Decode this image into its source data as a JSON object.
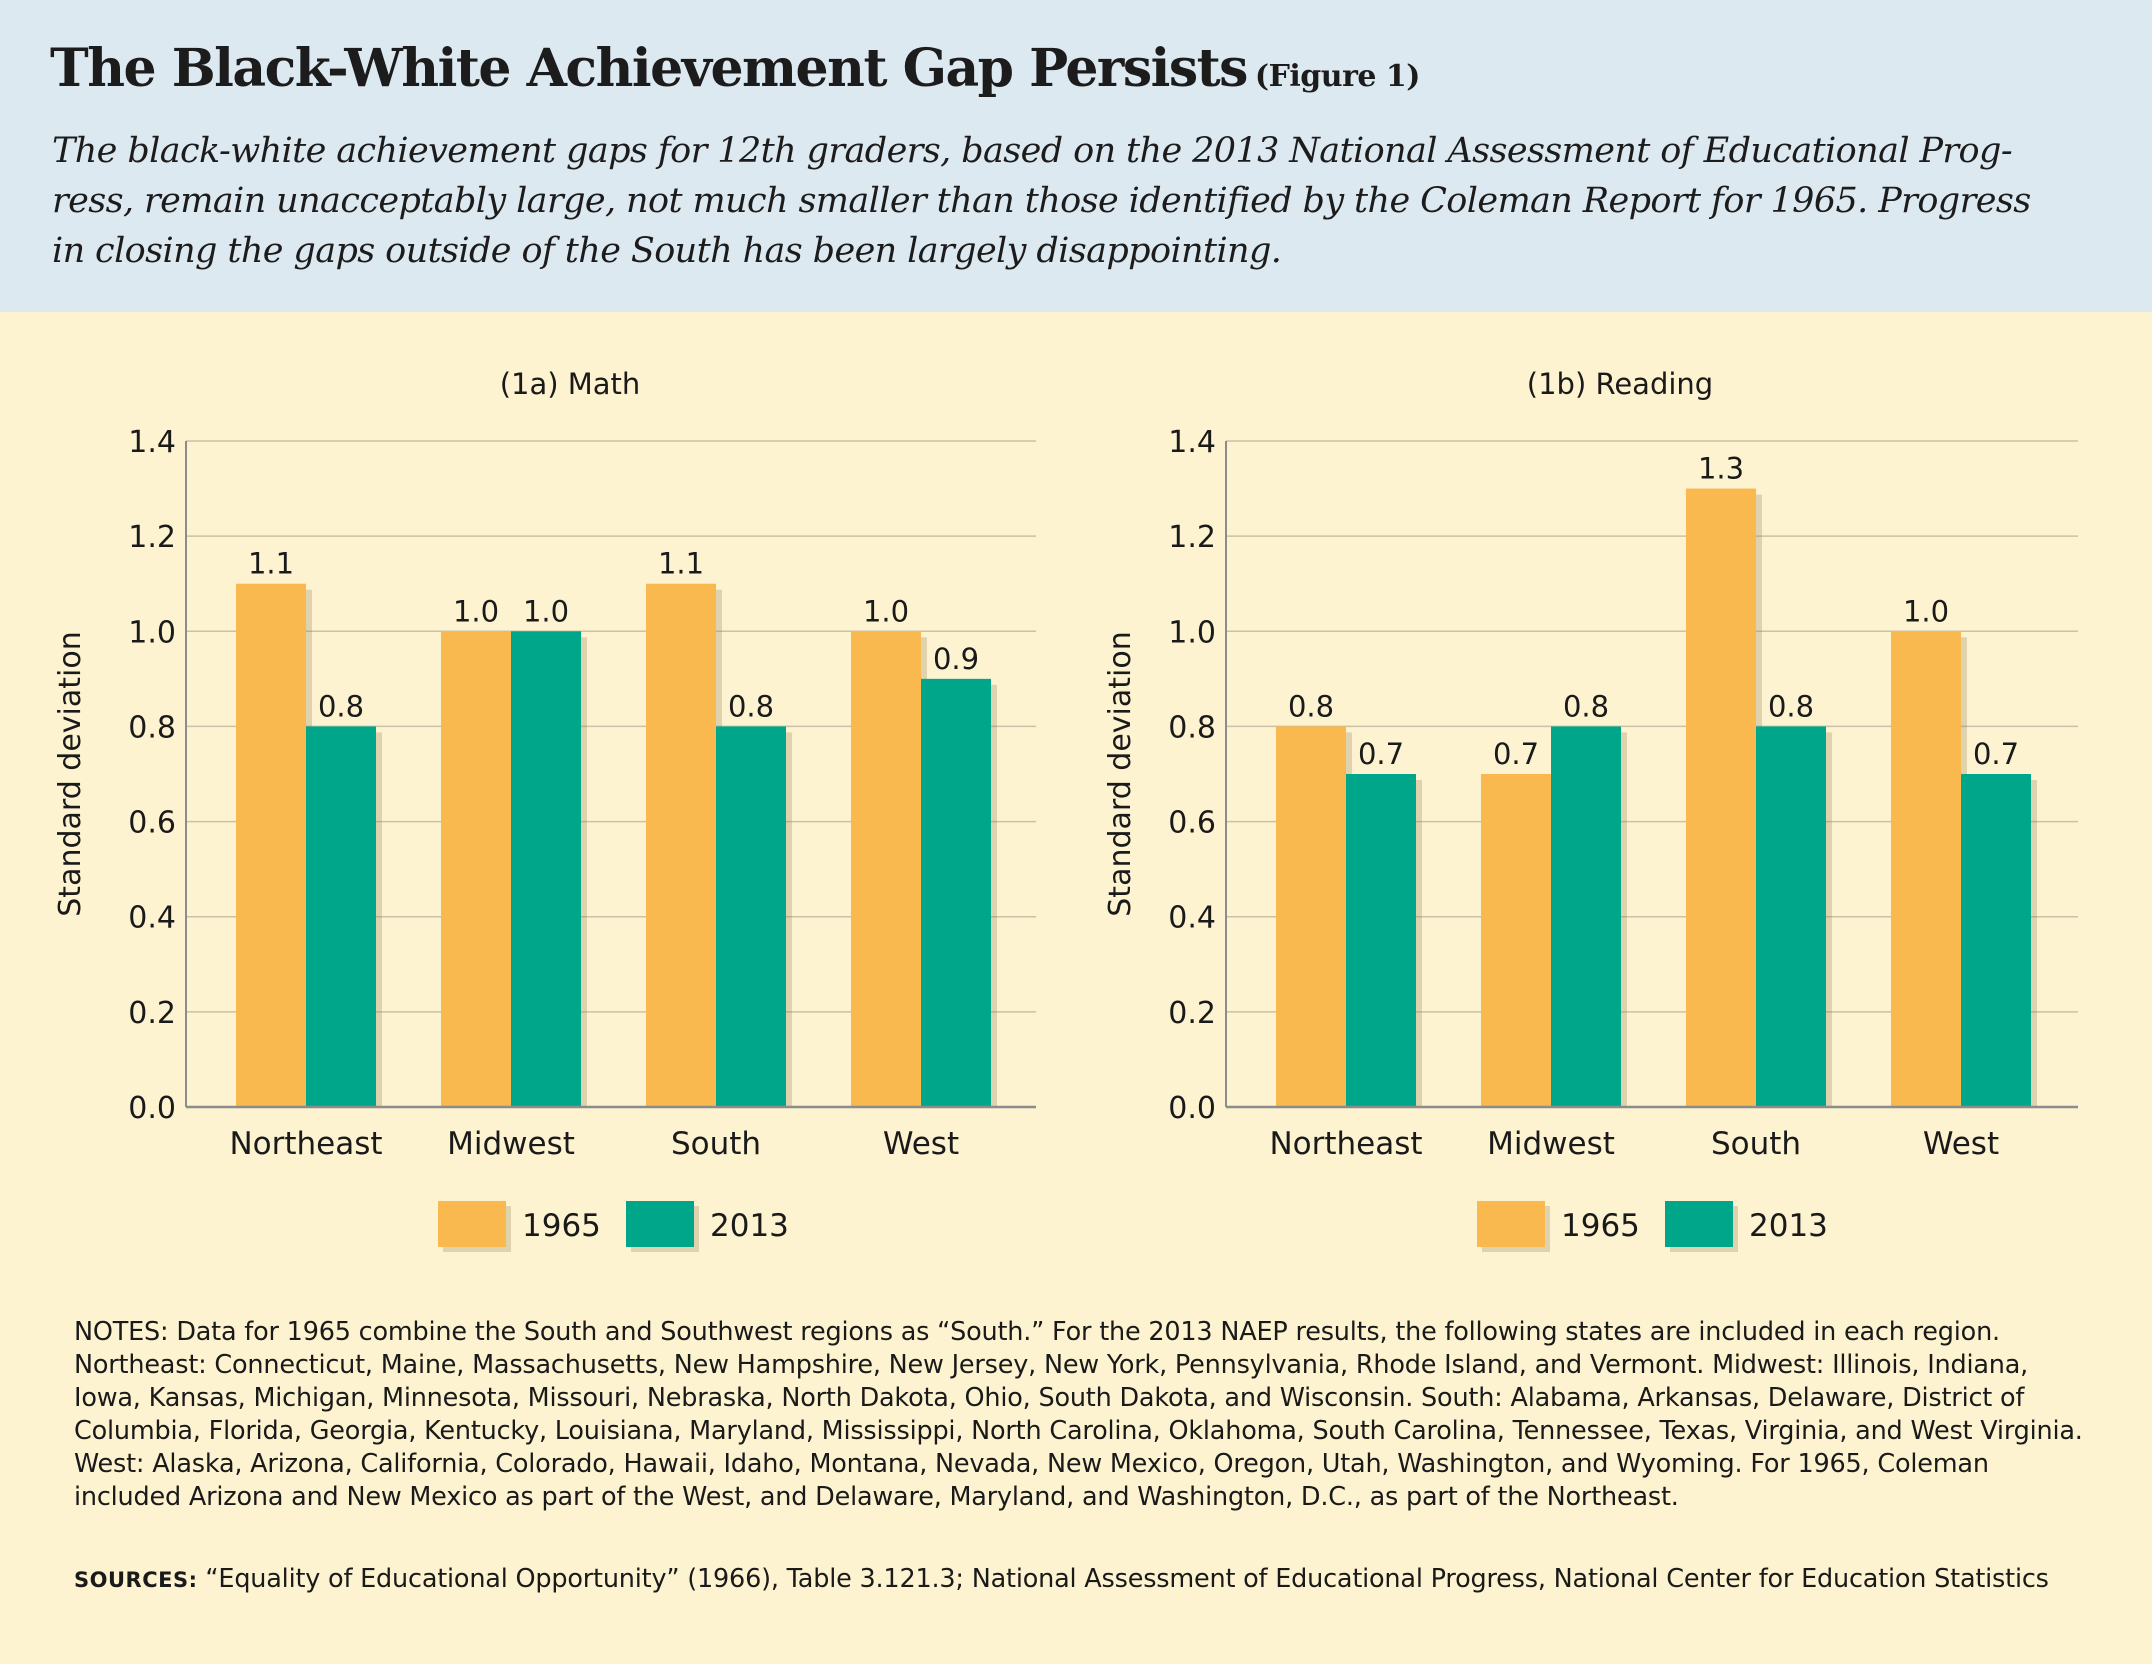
{
  "header": {
    "title": "The Black-White Achievement Gap Persists",
    "figure_tag": "(Figure 1)",
    "subtitle": "The black-white achievement gaps for 12th graders, based on the 2013 National Assessment of Educational Prog-\nress, remain unacceptably large, not much smaller than those identified by the Coleman Report for 1965. Progress\nin closing the gaps outside of the South has been largely disappointing."
  },
  "colors": {
    "series_1965": "#f9b94f",
    "series_2013": "#00a68a",
    "background": "#fdf3d0",
    "header_bg": "#dde9f1",
    "gridline": "#c9c2a8",
    "axis": "#8c8c8c"
  },
  "chart_data": [
    {
      "type": "bar",
      "title": "(1a) Math",
      "ylabel": "Standard deviation",
      "xlabel": "",
      "categories": [
        "Northeast",
        "Midwest",
        "South",
        "West"
      ],
      "series": [
        {
          "name": "1965",
          "values": [
            1.1,
            1.0,
            1.1,
            1.0
          ],
          "labels": [
            "1.1",
            "1.0",
            "1.1",
            "1.0"
          ]
        },
        {
          "name": "2013",
          "values": [
            0.8,
            1.0,
            0.8,
            0.9
          ],
          "labels": [
            "0.8",
            "1.0",
            "0.8",
            "0.9"
          ]
        }
      ],
      "ylim": [
        0,
        1.4
      ],
      "yticks": [
        "0.0",
        "0.2",
        "0.4",
        "0.6",
        "0.8",
        "1.0",
        "1.2",
        "1.4"
      ],
      "grid": true,
      "legend": "bottom-center"
    },
    {
      "type": "bar",
      "title": "(1b) Reading",
      "ylabel": "Standard deviation",
      "xlabel": "",
      "categories": [
        "Northeast",
        "Midwest",
        "South",
        "West"
      ],
      "series": [
        {
          "name": "1965",
          "values": [
            0.8,
            0.7,
            1.3,
            1.0
          ],
          "labels": [
            "0.8",
            "0.7",
            "1.3",
            "1.0"
          ]
        },
        {
          "name": "2013",
          "values": [
            0.7,
            0.8,
            0.8,
            0.7
          ],
          "labels": [
            "0.7",
            "0.8",
            "0.8",
            "0.7"
          ]
        }
      ],
      "ylim": [
        0,
        1.4
      ],
      "yticks": [
        "0.0",
        "0.2",
        "0.4",
        "0.6",
        "0.8",
        "1.0",
        "1.2",
        "1.4"
      ],
      "grid": true,
      "legend": "bottom-center"
    }
  ],
  "notes": {
    "text": "NOTES: Data for 1965 combine the South and Southwest regions as “South.” For the 2013 NAEP results, the following states are included in each region. Northeast: Connecticut, Maine, Massachusetts, New Hampshire, New Jersey, New York, Pennsylvania, Rhode Island, and Vermont. Midwest: Illinois, Indiana, Iowa, Kansas, Michigan, Minnesota, Missouri, Nebraska, North Dakota, Ohio, South Dakota, and Wisconsin. South: Alabama, Arkansas, Delaware, District of Columbia, Florida, Georgia, Kentucky, Louisiana, Maryland, Mississippi, North Carolina, Oklahoma, South Carolina, Tennessee, Texas, Virginia, and West Virginia. West: Alaska, Arizona, California, Colorado, Hawaii, Idaho, Montana, Nevada, New Mexico, Oregon, Utah, Washington, and Wyoming. For 1965, Coleman included Arizona and New Mexico as part of the West, and Delaware, Maryland, and Washington, D.C., as part of the Northeast."
  },
  "sources": {
    "label": "SOURCES:",
    "text": " “Equality of Educational Opportunity” (1966), Table 3.121.3; National Assessment of Educational Progress, National Center for Education Statistics"
  }
}
